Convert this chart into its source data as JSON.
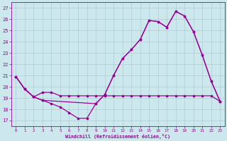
{
  "title": "",
  "xlabel": "Windchill (Refroidissement éolien,°C)",
  "xlim": [
    -0.5,
    23.5
  ],
  "ylim": [
    16.5,
    27.5
  ],
  "yticks": [
    17,
    18,
    19,
    20,
    21,
    22,
    23,
    24,
    25,
    26,
    27
  ],
  "xticks": [
    0,
    1,
    2,
    3,
    4,
    5,
    6,
    7,
    8,
    9,
    10,
    11,
    12,
    13,
    14,
    15,
    16,
    17,
    18,
    19,
    20,
    21,
    22,
    23
  ],
  "background_color": "#cce8ec",
  "line_color": "#990099",
  "grid_color": "#aacdd4",
  "line1_x": [
    0,
    1,
    2,
    3,
    4,
    5,
    6,
    7,
    8,
    9,
    10,
    11,
    12,
    13,
    14,
    15,
    16,
    17,
    18,
    19,
    20,
    21,
    22,
    23
  ],
  "line1_y": [
    20.9,
    19.8,
    19.1,
    18.8,
    18.5,
    18.2,
    17.7,
    17.2,
    17.2,
    18.5,
    19.3,
    21.0,
    22.5,
    23.3,
    24.2,
    25.9,
    25.8,
    25.3,
    26.7,
    26.3,
    24.9,
    22.8,
    20.5,
    18.7
  ],
  "line2_x": [
    0,
    1,
    2,
    3,
    9,
    10,
    11,
    12,
    13,
    14,
    15,
    16,
    17,
    18,
    19,
    20,
    21,
    22,
    23
  ],
  "line2_y": [
    20.9,
    19.8,
    19.1,
    18.8,
    18.5,
    19.3,
    21.0,
    22.5,
    23.3,
    24.2,
    25.9,
    25.8,
    25.3,
    26.7,
    26.3,
    24.9,
    22.8,
    20.5,
    18.7
  ],
  "line3_x": [
    0,
    1,
    2,
    3,
    4,
    5,
    6,
    7,
    8,
    9,
    10,
    11,
    12,
    13,
    14,
    15,
    16,
    17,
    18,
    19,
    20,
    21,
    22,
    23
  ],
  "line3_y": [
    20.9,
    19.8,
    19.1,
    19.5,
    19.5,
    19.2,
    19.2,
    19.2,
    19.2,
    19.2,
    19.2,
    19.2,
    19.2,
    19.2,
    19.2,
    19.2,
    19.2,
    19.2,
    19.2,
    19.2,
    19.2,
    19.2,
    19.2,
    18.7
  ]
}
